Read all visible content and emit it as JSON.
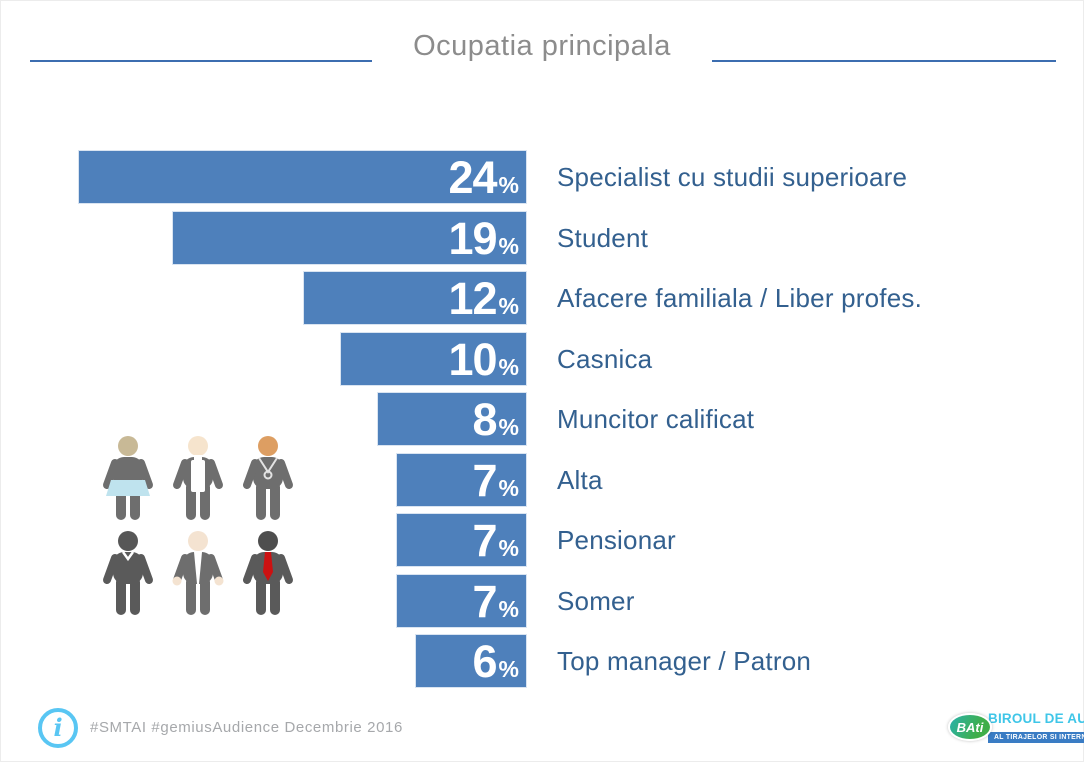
{
  "header": {
    "title": "Ocupatia principala"
  },
  "chart_data": {
    "type": "bar",
    "orientation": "horizontal, right-aligned bars with labels on the right",
    "title": "Ocupatia principala",
    "categories": [
      "Specialist cu studii superioare",
      "Student",
      "Afacere familiala / Liber profes.",
      "Casnica",
      "Muncitor calificat",
      "Alta",
      "Pensionar",
      "Somer",
      "Top manager / Patron"
    ],
    "values": [
      24,
      19,
      12,
      10,
      8,
      7,
      7,
      7,
      6
    ],
    "unit": "%",
    "xlim": [
      0,
      24
    ],
    "grid": "off",
    "legend": "none",
    "bar_color": "#4e80bb",
    "value_label_color": "#ffffff",
    "category_label_color": "#33608f"
  },
  "footer": {
    "hashtags": "#SMTAI #gemiusAudience Decembrie 2016",
    "logo": {
      "badge": "BAti",
      "line1": "BIROUL DE AUDIT",
      "line2": "AL TIRAJELOR SI INTERNETULUI"
    }
  },
  "icons": {
    "info": "info-icon",
    "people": [
      "person-skirt-icon",
      "person-apron-icon",
      "person-necklace-icon",
      "person-plain-icon",
      "person-shirt-icon",
      "person-tie-icon"
    ]
  },
  "colors": {
    "bar": "#4e80bb",
    "category_text": "#33608f",
    "title_text": "#8c8c8c",
    "header_line": "#3c6db0",
    "footer_text": "#a6a8ab",
    "info_icon": "#59c6f3",
    "logo_cyan": "#3fc6e8",
    "logo_strip_blue": "#3a7cc4",
    "logo_green": "#3fae49",
    "skirt_blue": "#bfe3ee",
    "tie_red": "#cc1111"
  }
}
